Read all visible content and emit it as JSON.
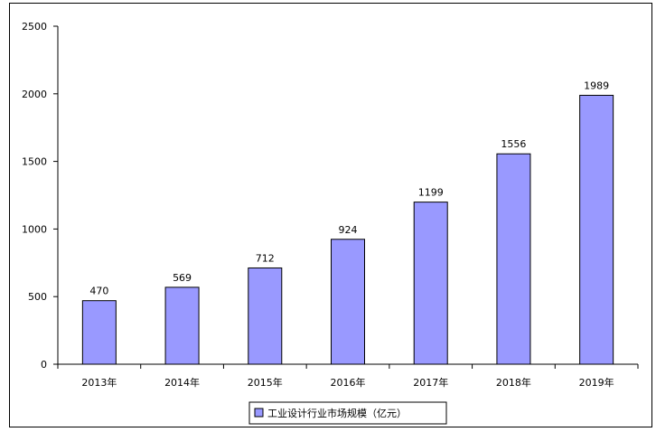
{
  "chart_data": {
    "type": "bar",
    "categories": [
      "2013年",
      "2014年",
      "2015年",
      "2016年",
      "2017年",
      "2018年",
      "2019年"
    ],
    "series": [
      {
        "name": "工业设计行业市场规模（亿元）",
        "values": [
          470,
          569,
          712,
          924,
          1199,
          1556,
          1989
        ]
      }
    ],
    "ylim": [
      0,
      2500
    ],
    "yticks": [
      0,
      500,
      1000,
      1500,
      2000,
      2500
    ],
    "data_labels": [
      "470",
      "569",
      "712",
      "924",
      "1199",
      "1556",
      "1989"
    ],
    "legend": "bottom-center",
    "grid": false,
    "colors": {
      "bar_fill": "#9999ff",
      "bar_stroke": "#000000"
    }
  }
}
